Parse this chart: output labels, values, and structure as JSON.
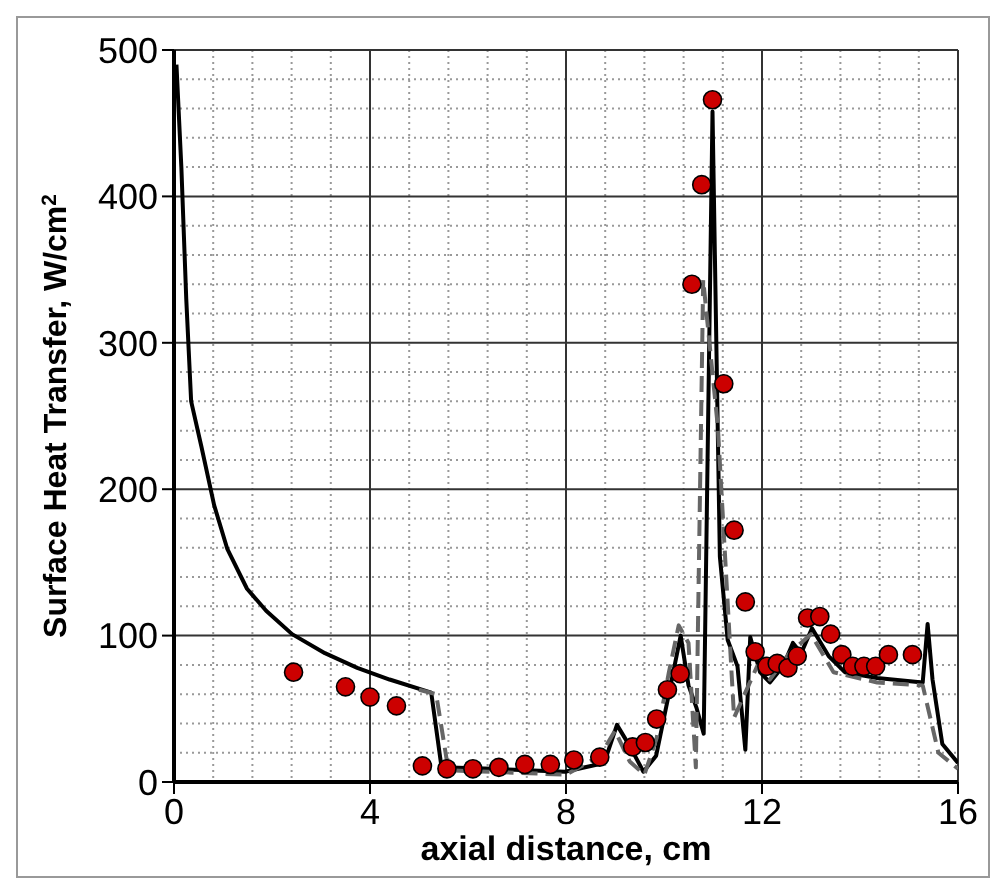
{
  "chart_data": {
    "type": "line",
    "xlabel": "axial distance, cm",
    "ylabel": "Surface Heat Transfer, W/cm$^{2}$",
    "xlim": [
      0,
      16
    ],
    "xticks": [
      0,
      4,
      8,
      12,
      16
    ],
    "ylim": [
      0,
      500
    ],
    "yticks": [
      0,
      100,
      200,
      300,
      400,
      500
    ],
    "grid": true,
    "legend": false,
    "series": [
      {
        "type": "line",
        "color": "#000000",
        "line_style": "solid",
        "marker": "none",
        "x": [
          0.05,
          0.15,
          0.25,
          0.35,
          0.56,
          0.82,
          1.09,
          1.49,
          1.88,
          2.41,
          3.08,
          3.74,
          4.4,
          5.25,
          5.46,
          6.5,
          7.98,
          8.78,
          9.04,
          9.31,
          9.58,
          9.84,
          10.08,
          10.34,
          10.5,
          10.66,
          10.81,
          10.99,
          11.14,
          11.3,
          11.5,
          11.66,
          11.76,
          11.96,
          12.16,
          12.43,
          12.63,
          12.8,
          13.02,
          13.36,
          13.69,
          14.35,
          15.28,
          15.38,
          15.48,
          15.68,
          16.0
        ],
        "values": [
          490,
          420,
          330,
          260,
          229,
          189,
          159,
          132,
          117,
          101,
          88,
          78,
          70,
          61,
          10,
          9,
          7,
          13,
          39,
          24,
          7,
          18,
          57,
          100,
          66,
          51,
          33,
          458,
          154,
          97,
          79,
          22,
          99,
          75,
          68,
          79,
          95,
          88,
          105,
          86,
          75,
          71,
          68,
          108,
          70,
          26,
          13
        ]
      },
      {
        "type": "line",
        "color": "#666666",
        "line_style": "dashed",
        "marker": "none",
        "x": [
          5.0,
          5.35,
          5.6,
          8.0,
          8.7,
          9.0,
          9.3,
          9.6,
          9.85,
          10.1,
          10.3,
          10.5,
          10.65,
          10.8,
          11.1,
          11.43,
          11.9,
          12.16,
          12.56,
          13.0,
          13.46,
          14.35,
          15.28,
          15.6,
          16.0
        ],
        "values": [
          63,
          60,
          8,
          5,
          18,
          35,
          14,
          5,
          30,
          75,
          107,
          95,
          10,
          343,
          242,
          44,
          79,
          70,
          88,
          101,
          75,
          68,
          66,
          20,
          9
        ]
      },
      {
        "type": "scatter",
        "color": "#cc0000",
        "marker": "circle",
        "x": [
          2.44,
          3.5,
          4.0,
          4.54,
          5.07,
          5.57,
          6.1,
          6.63,
          7.16,
          7.68,
          8.16,
          8.69,
          9.36,
          9.62,
          9.85,
          10.07,
          10.33,
          10.57,
          10.77,
          10.99,
          11.22,
          11.43,
          11.66,
          11.86,
          12.1,
          12.31,
          12.53,
          12.72,
          12.93,
          13.18,
          13.4,
          13.63,
          13.85,
          14.08,
          14.32,
          14.58,
          15.07
        ],
        "values": [
          75,
          65,
          58,
          52,
          11,
          9,
          9,
          10,
          12,
          12,
          15,
          17,
          24,
          27,
          43,
          63,
          74,
          340,
          408,
          466,
          272,
          172,
          123,
          89,
          79,
          81,
          78,
          86,
          112,
          113,
          101,
          87,
          79,
          79,
          79,
          87,
          87
        ]
      }
    ]
  }
}
